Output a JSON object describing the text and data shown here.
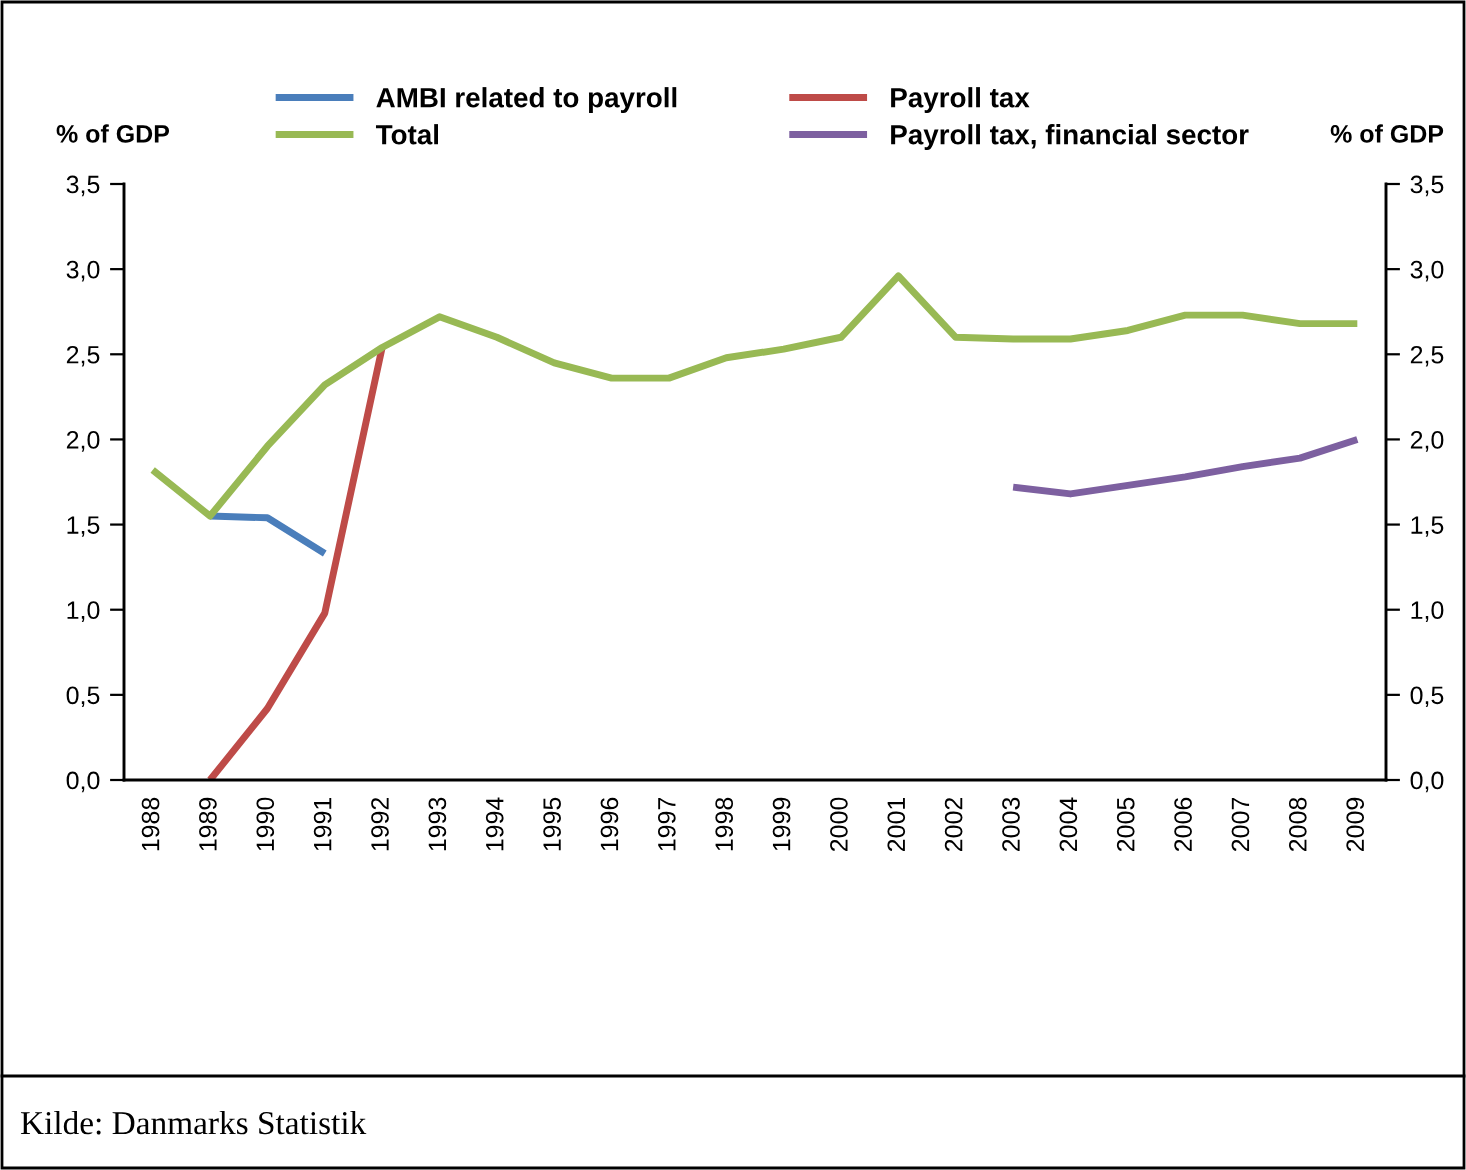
{
  "chart_data": {
    "type": "line",
    "categories": [
      "1988",
      "1989",
      "1990",
      "1991",
      "1992",
      "1993",
      "1994",
      "1995",
      "1996",
      "1997",
      "1998",
      "1999",
      "2000",
      "2001",
      "2002",
      "2003",
      "2004",
      "2005",
      "2006",
      "2007",
      "2008",
      "2009"
    ],
    "series": [
      {
        "name": "AMBI related to payroll",
        "color": "#4a7ebb",
        "values": [
          null,
          1.55,
          1.54,
          1.33,
          null,
          null,
          null,
          null,
          null,
          null,
          null,
          null,
          null,
          null,
          null,
          null,
          null,
          null,
          null,
          null,
          null,
          null
        ]
      },
      {
        "name": "Payroll tax",
        "color": "#be4b48",
        "values": [
          null,
          0.0,
          0.42,
          0.98,
          2.54,
          null,
          null,
          null,
          null,
          null,
          null,
          null,
          null,
          null,
          null,
          null,
          null,
          null,
          null,
          null,
          null,
          null
        ]
      },
      {
        "name": "Total",
        "color": "#98b954",
        "values": [
          1.82,
          1.55,
          1.96,
          2.32,
          2.54,
          2.72,
          2.6,
          2.45,
          2.36,
          2.36,
          2.48,
          2.53,
          2.6,
          2.96,
          2.6,
          2.59,
          2.59,
          2.64,
          2.73,
          2.73,
          2.68,
          2.68
        ]
      },
      {
        "name": "Payroll tax, financial sector",
        "color": "#7d60a0",
        "values": [
          null,
          null,
          null,
          null,
          null,
          null,
          null,
          null,
          null,
          null,
          null,
          null,
          null,
          null,
          null,
          1.72,
          1.68,
          1.73,
          1.78,
          1.84,
          1.89,
          2.0
        ]
      }
    ],
    "ylabel": "% of GDP",
    "y2label": "% of GDP",
    "ylim": [
      0,
      3.5
    ],
    "yticks": [
      {
        "value": 0,
        "label": "0,0"
      },
      {
        "value": 0.5,
        "label": "0,5"
      },
      {
        "value": 1,
        "label": "1,0"
      },
      {
        "value": 1.5,
        "label": "1,5"
      },
      {
        "value": 2,
        "label": "2,0"
      },
      {
        "value": 2.5,
        "label": "2,5"
      },
      {
        "value": 3,
        "label": "3,0"
      },
      {
        "value": 3.5,
        "label": "3,5"
      }
    ],
    "y2lim": [
      0,
      3.5
    ],
    "y2ticks": [
      {
        "value": 0,
        "label": "0,0"
      },
      {
        "value": 0.5,
        "label": "0,5"
      },
      {
        "value": 1,
        "label": "1,0"
      },
      {
        "value": 1.5,
        "label": "1,5"
      },
      {
        "value": 2,
        "label": "2,0"
      },
      {
        "value": 2.5,
        "label": "2,5"
      },
      {
        "value": 3,
        "label": "3,0"
      },
      {
        "value": 3.5,
        "label": "3,5"
      }
    ],
    "grid": false,
    "legend": "top",
    "marker": "none",
    "line_style": "solid",
    "annotations": [
      "Kilde: Danmarks Statistik"
    ]
  }
}
